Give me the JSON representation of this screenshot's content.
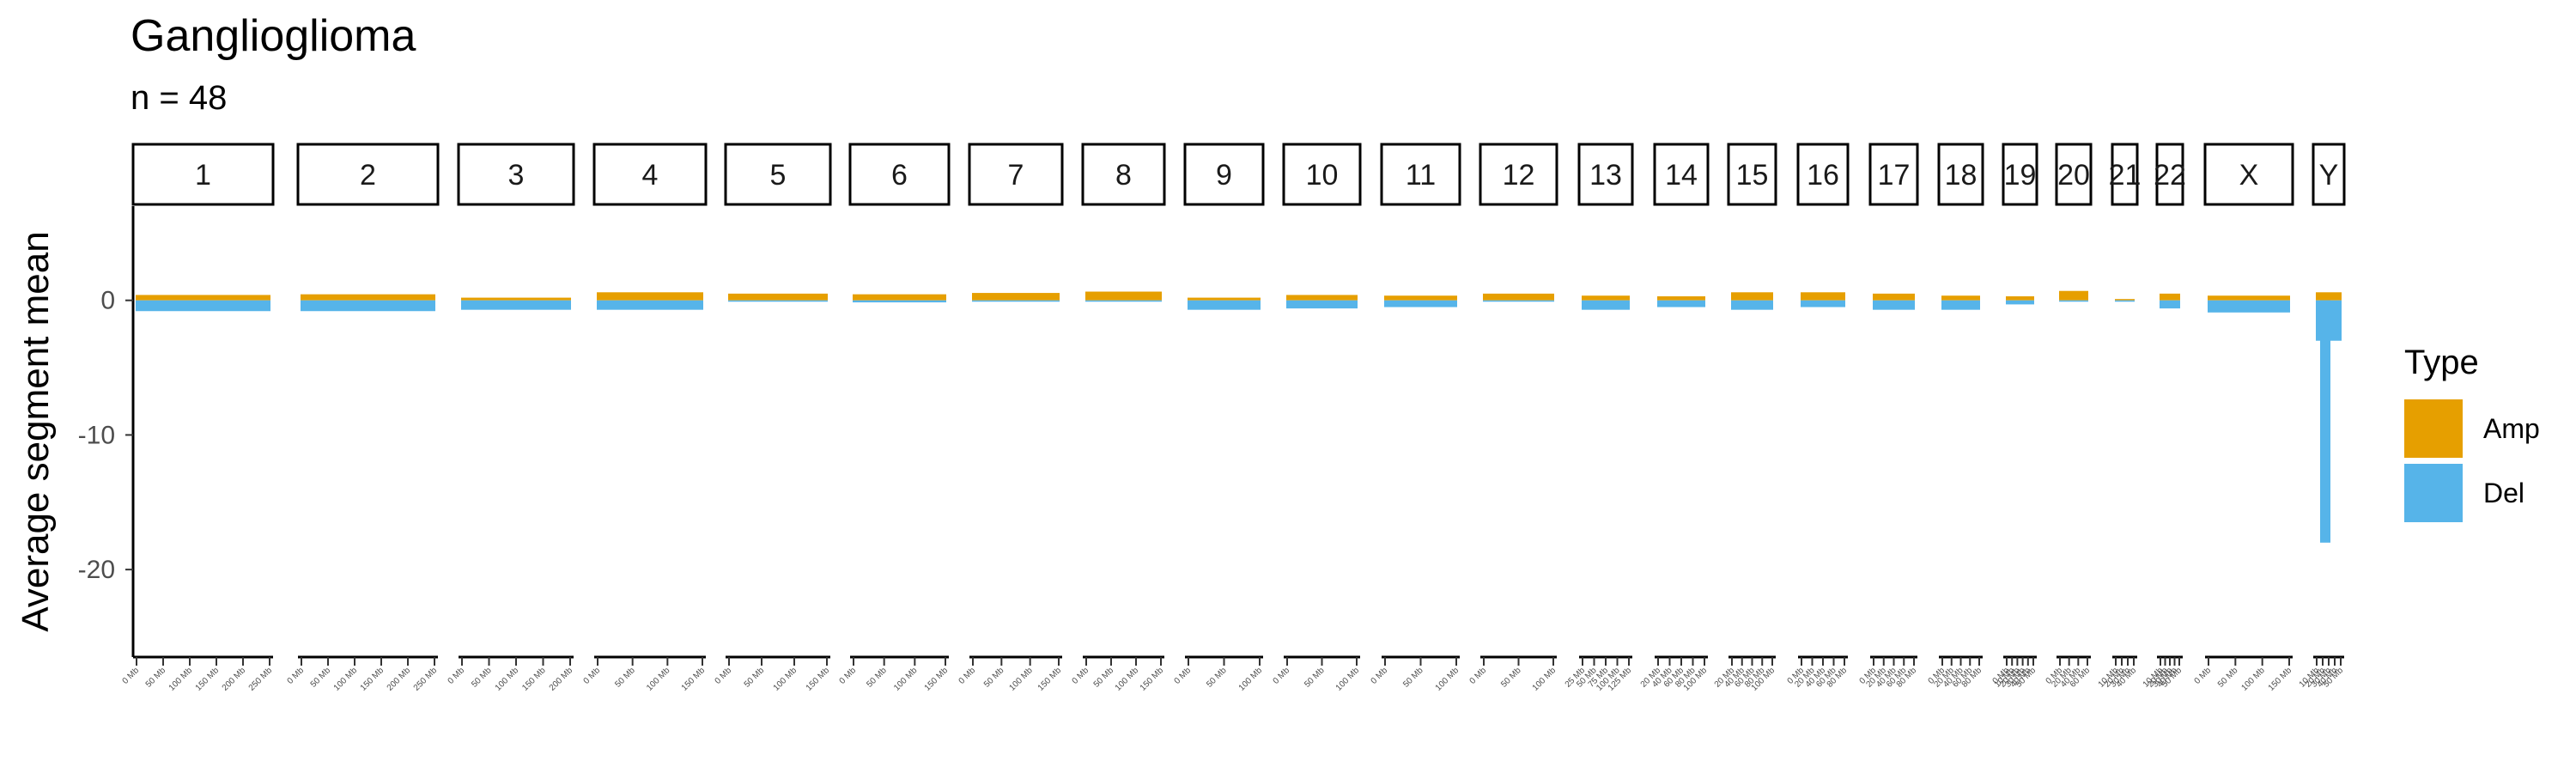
{
  "chart_data": {
    "type": "bar",
    "title": "Ganglioglioma",
    "subtitle": "n = 48",
    "ylabel": "Average segment mean",
    "xlabel": "",
    "ylim": [
      -26.5,
      7
    ],
    "yticks": [
      0,
      -10,
      -20
    ],
    "ytick_labels": [
      "0",
      "-10",
      "-20"
    ],
    "legend": {
      "title": "Type",
      "position": "right",
      "entries": [
        {
          "name": "Amp",
          "color": "#E69F00"
        },
        {
          "name": "Del",
          "color": "#56B4E9"
        }
      ]
    },
    "panels": [
      {
        "chrom": "1",
        "length_mb": 249,
        "ticks": [
          "0 Mb",
          "50 Mb",
          "100 Mb",
          "150 Mb",
          "200 Mb",
          "250 Mb"
        ],
        "amp": 0.4,
        "del": -0.8
      },
      {
        "chrom": "2",
        "length_mb": 242,
        "ticks": [
          "0 Mb",
          "50 Mb",
          "100 Mb",
          "150 Mb",
          "200 Mb",
          "250 Mb"
        ],
        "amp": 0.45,
        "del": -0.8
      },
      {
        "chrom": "3",
        "length_mb": 198,
        "ticks": [
          "0 Mb",
          "50 Mb",
          "100 Mb",
          "150 Mb",
          "200 Mb"
        ],
        "amp": 0.2,
        "del": -0.7
      },
      {
        "chrom": "4",
        "length_mb": 190,
        "ticks": [
          "0 Mb",
          "50 Mb",
          "100 Mb",
          "150 Mb"
        ],
        "amp": 0.6,
        "del": -0.7
      },
      {
        "chrom": "5",
        "length_mb": 181,
        "ticks": [
          "0 Mb",
          "50 Mb",
          "100 Mb",
          "150 Mb"
        ],
        "amp": 0.5,
        "del": -0.1
      },
      {
        "chrom": "6",
        "length_mb": 171,
        "ticks": [
          "0 Mb",
          "50 Mb",
          "100 Mb",
          "150 Mb"
        ],
        "amp": 0.45,
        "del": -0.15
      },
      {
        "chrom": "7",
        "length_mb": 159,
        "ticks": [
          "0 Mb",
          "50 Mb",
          "100 Mb",
          "150 Mb"
        ],
        "amp": 0.55,
        "del": -0.1
      },
      {
        "chrom": "8",
        "length_mb": 145,
        "ticks": [
          "0 Mb",
          "50 Mb",
          "100 Mb",
          "150 Mb"
        ],
        "amp": 0.65,
        "del": -0.1
      },
      {
        "chrom": "9",
        "length_mb": 138,
        "ticks": [
          "0 Mb",
          "50 Mb",
          "100 Mb"
        ],
        "amp": 0.2,
        "del": -0.7
      },
      {
        "chrom": "10",
        "length_mb": 134,
        "ticks": [
          "0 Mb",
          "50 Mb",
          "100 Mb"
        ],
        "amp": 0.4,
        "del": -0.6
      },
      {
        "chrom": "11",
        "length_mb": 135,
        "ticks": [
          "0 Mb",
          "50 Mb",
          "100 Mb"
        ],
        "amp": 0.35,
        "del": -0.5
      },
      {
        "chrom": "12",
        "length_mb": 133,
        "ticks": [
          "0 Mb",
          "50 Mb",
          "100 Mb"
        ],
        "amp": 0.5,
        "del": -0.1
      },
      {
        "chrom": "13",
        "length_mb": 114,
        "ticks": [
          "25 Mb",
          "50 Mb",
          "75 Mb",
          "100 Mb",
          "125 Mb"
        ],
        "amp": 0.35,
        "del": -0.7
      },
      {
        "chrom": "14",
        "length_mb": 107,
        "ticks": [
          "20 Mb",
          "40 Mb",
          "60 Mb",
          "80 Mb",
          "100 Mb"
        ],
        "amp": 0.3,
        "del": -0.5
      },
      {
        "chrom": "15",
        "length_mb": 102,
        "ticks": [
          "20 Mb",
          "40 Mb",
          "60 Mb",
          "80 Mb",
          "100 Mb"
        ],
        "amp": 0.6,
        "del": -0.7
      },
      {
        "chrom": "16",
        "length_mb": 90,
        "ticks": [
          "0 Mb",
          "20 Mb",
          "40 Mb",
          "60 Mb",
          "80 Mb"
        ],
        "amp": 0.6,
        "del": -0.5
      },
      {
        "chrom": "17",
        "length_mb": 83,
        "ticks": [
          "0 Mb",
          "20 Mb",
          "40 Mb",
          "60 Mb",
          "80 Mb"
        ],
        "amp": 0.5,
        "del": -0.7
      },
      {
        "chrom": "18",
        "length_mb": 80,
        "ticks": [
          "0 Mb",
          "20 Mb",
          "40 Mb",
          "60 Mb",
          "80 Mb"
        ],
        "amp": 0.35,
        "del": -0.7
      },
      {
        "chrom": "19",
        "length_mb": 59,
        "ticks": [
          "0 Mb",
          "10 Mb",
          "20 Mb",
          "30 Mb",
          "40 Mb",
          "50 Mb"
        ],
        "amp": 0.3,
        "del": -0.3
      },
      {
        "chrom": "20",
        "length_mb": 64,
        "ticks": [
          "0 Mb",
          "20 Mb",
          "40 Mb",
          "60 Mb"
        ],
        "amp": 0.7,
        "del": -0.1
      },
      {
        "chrom": "21",
        "length_mb": 46,
        "ticks": [
          "10 Mb",
          "20 Mb",
          "30 Mb",
          "40 Mb"
        ],
        "amp": 0.1,
        "del": -0.1
      },
      {
        "chrom": "22",
        "length_mb": 51,
        "ticks": [
          "10 Mb",
          "20 Mb",
          "30 Mb",
          "40 Mb",
          "50 Mb"
        ],
        "amp": 0.5,
        "del": -0.6
      },
      {
        "chrom": "X",
        "length_mb": 156,
        "ticks": [
          "0 Mb",
          "50 Mb",
          "100 Mb",
          "150 Mb"
        ],
        "amp": 0.35,
        "del": -0.9
      },
      {
        "chrom": "Y",
        "length_mb": 57,
        "ticks": [
          "10 Mb",
          "20 Mb",
          "30 Mb",
          "40 Mb",
          "50 Mb"
        ],
        "amp": 0.6,
        "del": -3.0,
        "del_min": -18.0
      }
    ]
  }
}
